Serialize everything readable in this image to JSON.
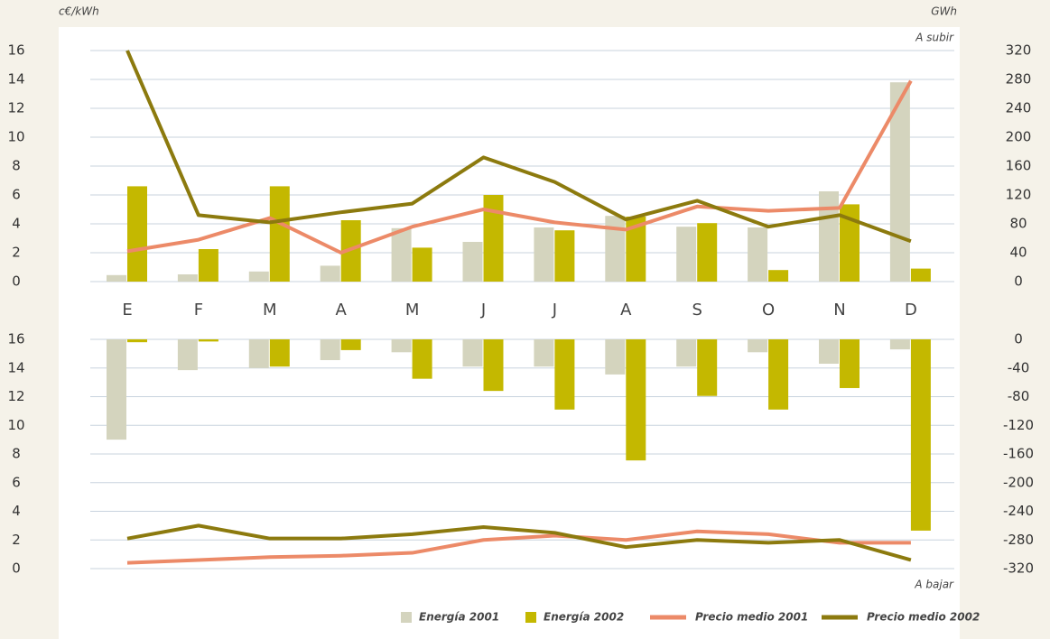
{
  "chart_data": [
    {
      "type": "bar",
      "y_label": "c€/kWh",
      "y2_label": "GWh",
      "annotation": "A subir",
      "categories": [
        "E",
        "F",
        "M",
        "A",
        "M",
        "J",
        "J",
        "A",
        "S",
        "O",
        "N",
        "D"
      ],
      "ylim": [
        0,
        16
      ],
      "yticks": [
        0,
        2,
        4,
        6,
        8,
        10,
        12,
        14,
        16
      ],
      "y2lim": [
        0,
        320
      ],
      "y2ticks": [
        0,
        40,
        80,
        120,
        160,
        200,
        240,
        280,
        320
      ],
      "grid": true,
      "legend": "bottom-right",
      "series": [
        {
          "name": "Energía 2001",
          "color": "#d4d4be",
          "kind": "bar",
          "axis": "y2",
          "values": [
            9,
            10,
            14,
            22,
            74,
            55,
            75,
            91,
            76,
            75,
            125,
            276
          ]
        },
        {
          "name": "Energía 2002",
          "color": "#c4b800",
          "kind": "bar",
          "axis": "y2",
          "values": [
            132,
            45,
            132,
            85,
            47,
            120,
            71,
            90,
            81,
            16,
            107,
            18
          ]
        },
        {
          "name": "Precio medio 2001",
          "color": "#ec8a68",
          "kind": "line",
          "axis": "y",
          "values": [
            2.1,
            2.9,
            4.4,
            2.0,
            3.8,
            5.0,
            4.1,
            3.6,
            5.2,
            4.9,
            5.1,
            13.9
          ]
        },
        {
          "name": "Precio medio 2002",
          "color": "#8c7a0e",
          "kind": "line",
          "axis": "y",
          "values": [
            16.0,
            4.6,
            4.1,
            4.8,
            5.4,
            8.6,
            6.9,
            4.3,
            5.6,
            3.8,
            4.6,
            2.8
          ]
        }
      ]
    },
    {
      "type": "bar",
      "annotation": "A bajar",
      "ylim": [
        0,
        16
      ],
      "yticks": [
        0,
        2,
        4,
        6,
        8,
        10,
        12,
        14,
        16
      ],
      "y2lim": [
        -320,
        0
      ],
      "y2ticks": [
        0,
        -40,
        -80,
        -120,
        -160,
        -200,
        -240,
        -280,
        -320
      ],
      "grid": true,
      "series": [
        {
          "kind": "bar",
          "axis": "y2",
          "values": [
            -140,
            -43,
            -40,
            -29,
            -18,
            -38,
            -38,
            -49,
            -38,
            -18,
            -34,
            -14
          ]
        },
        {
          "kind": "bar",
          "axis": "y2",
          "values": [
            -4,
            -3,
            -38,
            -15,
            -55,
            -72,
            -98,
            -169,
            -79,
            -98,
            -68,
            -267
          ]
        },
        {
          "kind": "line",
          "axis": "y",
          "values": [
            0.4,
            0.6,
            0.8,
            0.9,
            1.1,
            2.0,
            2.3,
            2.0,
            2.6,
            2.4,
            1.8,
            1.8
          ]
        },
        {
          "kind": "line",
          "axis": "y",
          "values": [
            2.1,
            3.0,
            2.1,
            2.1,
            2.4,
            2.9,
            2.5,
            1.5,
            2.0,
            1.8,
            2.0,
            0.6
          ]
        }
      ]
    }
  ]
}
